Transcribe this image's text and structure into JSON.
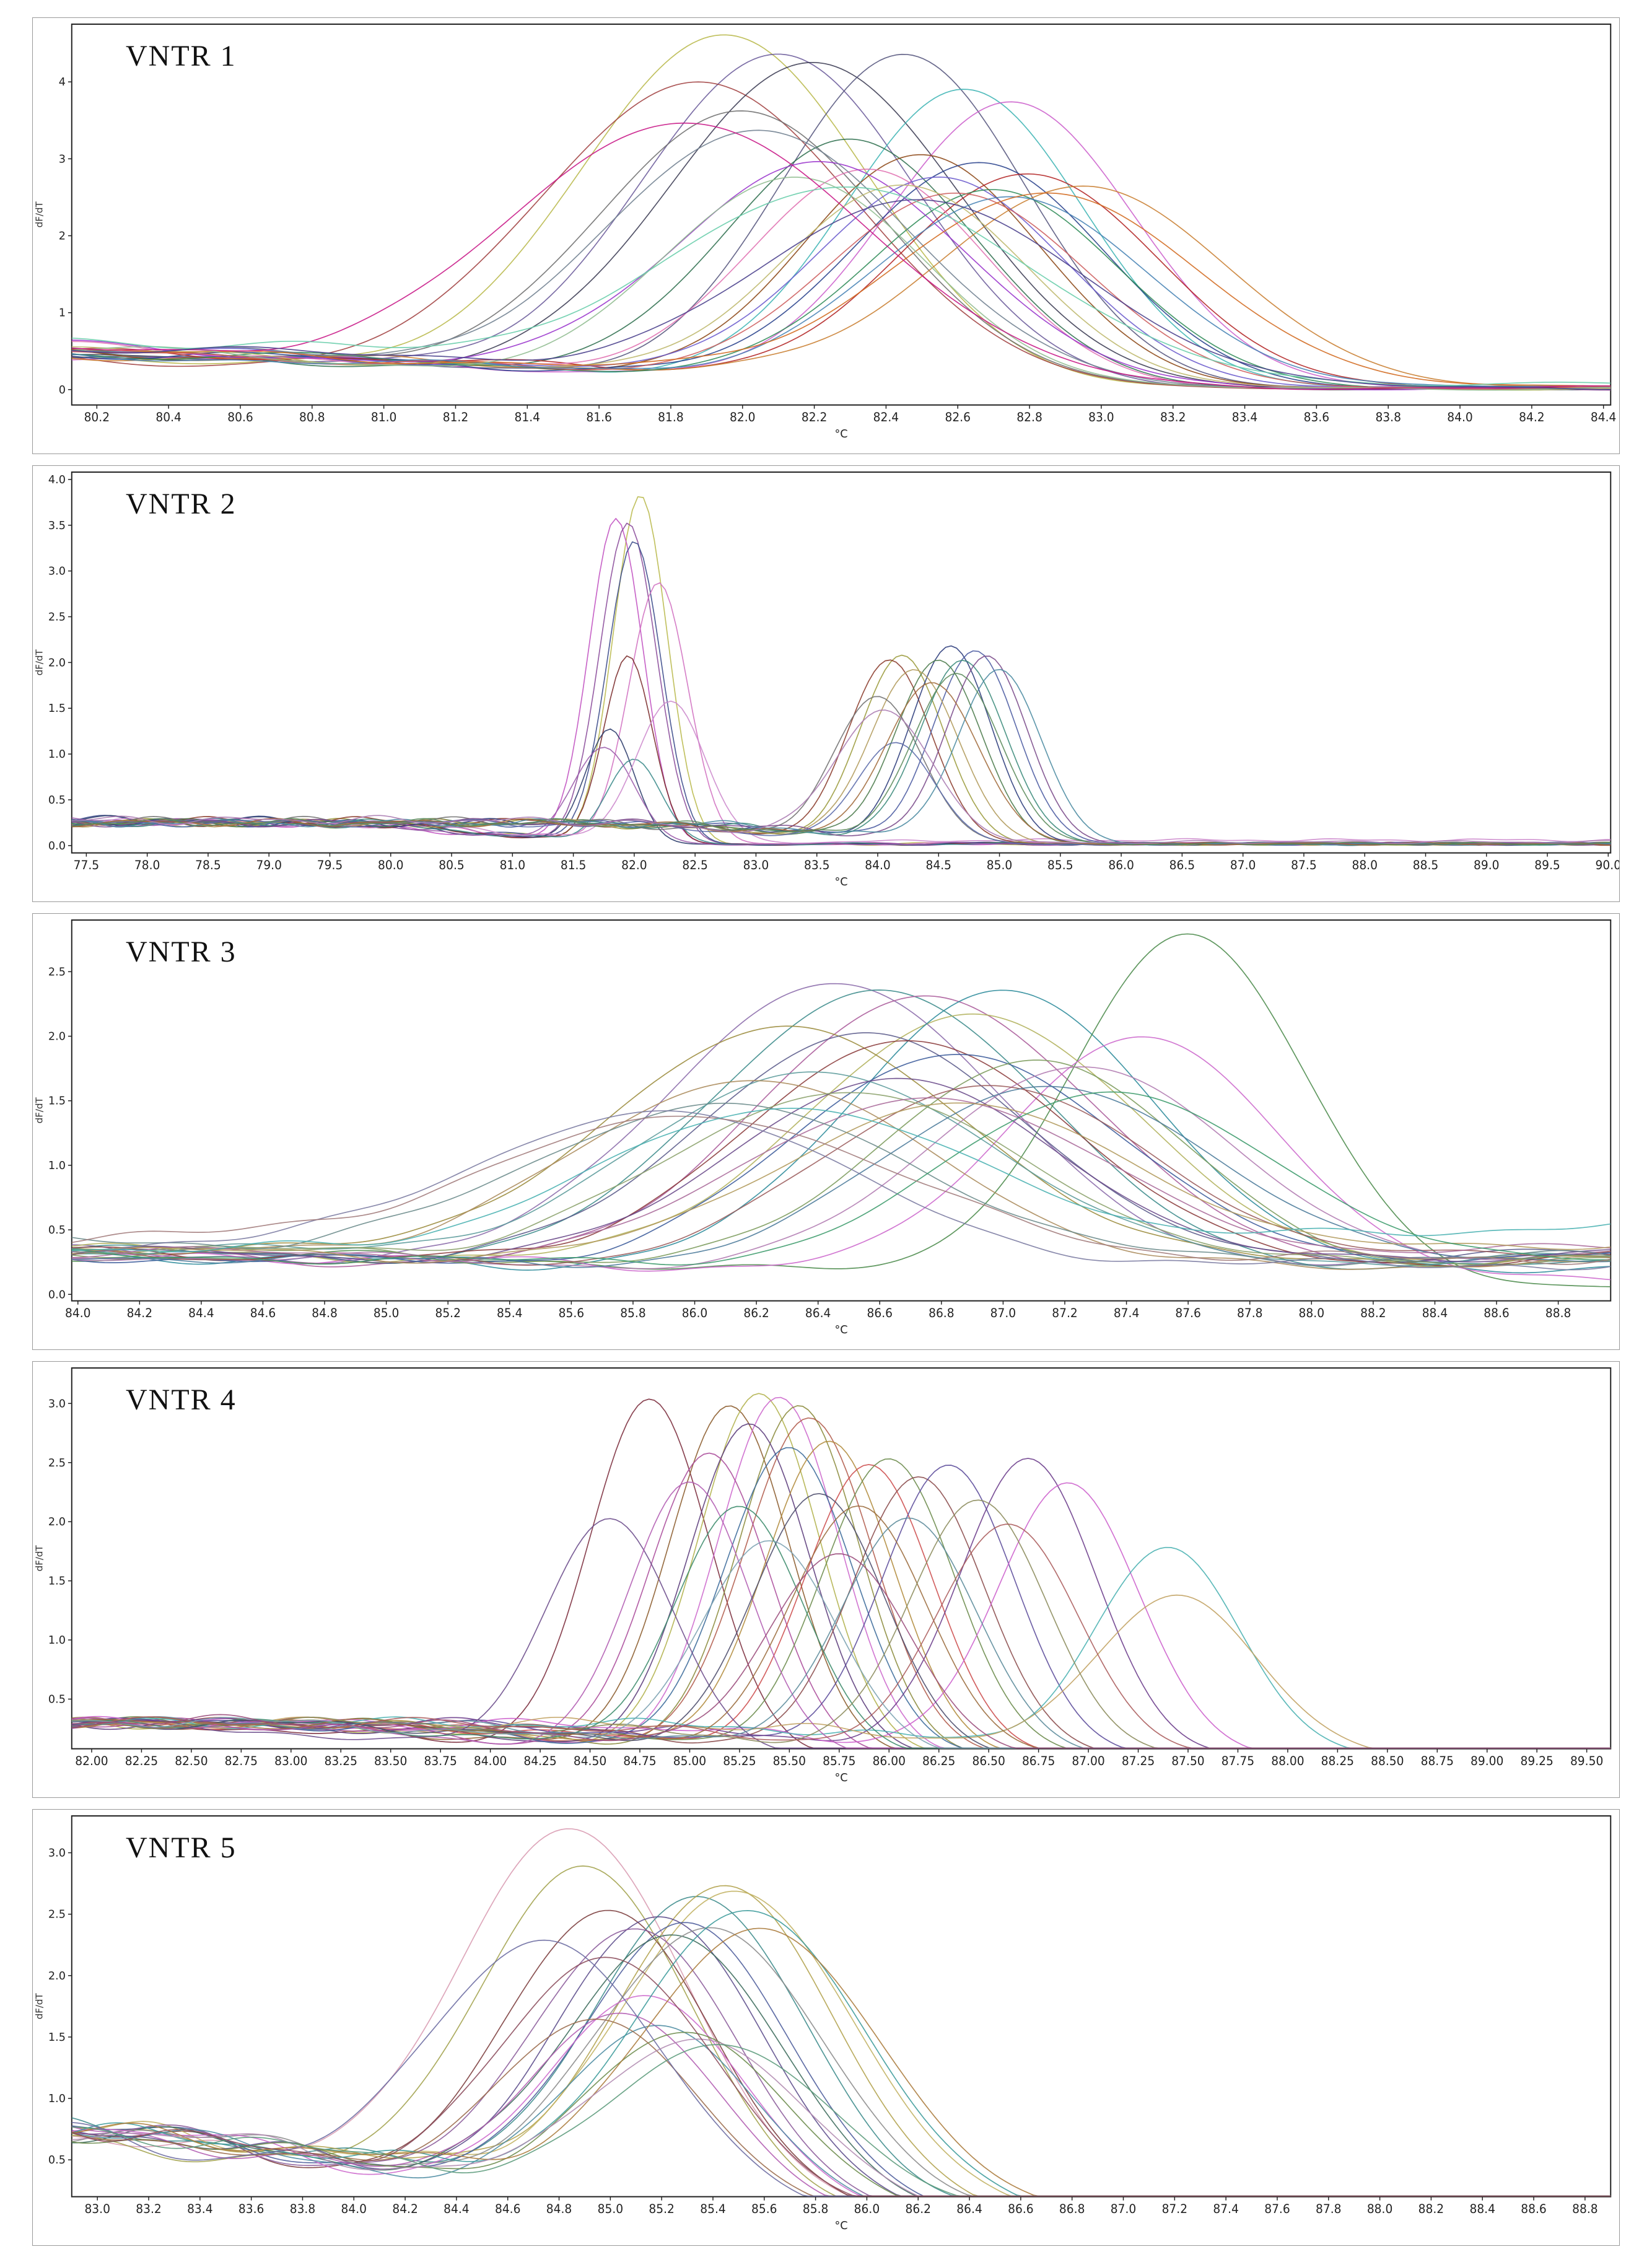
{
  "page": {
    "background": "#ffffff",
    "frame_color": "#222222",
    "tick_color": "#222222"
  },
  "chart_data": [
    {
      "type": "line",
      "title": "VNTR 1",
      "xlabel": "°C",
      "ylabel": "dF/dT",
      "xlim": [
        80.13,
        84.42
      ],
      "xticks": {
        "start": 80.2,
        "end": 84.4,
        "step": 0.2,
        "decimals": 1
      },
      "ylim": [
        -0.2,
        4.75
      ],
      "yticks": {
        "start": 0,
        "end": 4,
        "step": 1,
        "decimals": 0
      },
      "grid": false,
      "legend": "none",
      "curves": [
        [
          81.95,
          4.55,
          0.4,
          0.55,
          0.02,
          "#b8b84a"
        ],
        [
          82.1,
          4.3,
          0.38,
          0.6,
          0.02,
          "#6a5a9a"
        ],
        [
          81.88,
          3.95,
          0.44,
          0.5,
          0.02,
          "#a04040"
        ],
        [
          82.2,
          4.2,
          0.4,
          0.55,
          0.02,
          "#3a3a52"
        ],
        [
          82.45,
          4.3,
          0.34,
          0.5,
          0.02,
          "#55557d"
        ],
        [
          82.62,
          3.85,
          0.33,
          0.5,
          0.02,
          "#3cb4b4"
        ],
        [
          82.75,
          3.7,
          0.34,
          0.45,
          0.02,
          "#cc5fcc"
        ],
        [
          82.0,
          3.55,
          0.4,
          0.62,
          0.02,
          "#6e6e6e"
        ],
        [
          82.3,
          3.2,
          0.35,
          0.55,
          0.02,
          "#2f6f4f"
        ],
        [
          82.5,
          3.0,
          0.33,
          0.5,
          0.02,
          "#8b4513"
        ],
        [
          82.66,
          2.9,
          0.35,
          0.5,
          0.02,
          "#27408b"
        ],
        [
          82.8,
          2.75,
          0.36,
          0.5,
          0.02,
          "#b22222"
        ],
        [
          82.95,
          2.6,
          0.4,
          0.45,
          0.02,
          "#c87d2f"
        ],
        [
          82.55,
          2.7,
          0.35,
          0.55,
          0.02,
          "#6a5acd"
        ],
        [
          82.35,
          2.8,
          0.33,
          0.6,
          0.02,
          "#e070b0"
        ],
        [
          82.7,
          2.55,
          0.35,
          0.5,
          0.02,
          "#2e8b57"
        ],
        [
          82.22,
          2.9,
          0.4,
          0.65,
          0.02,
          "#9932cc"
        ],
        [
          82.05,
          3.3,
          0.42,
          0.7,
          0.02,
          "#708090"
        ],
        [
          82.45,
          2.6,
          0.34,
          0.55,
          0.02,
          "#bdb76b"
        ],
        [
          82.6,
          2.5,
          0.36,
          0.5,
          0.02,
          "#cd5c5c"
        ],
        [
          82.75,
          2.45,
          0.38,
          0.45,
          0.05,
          "#4682b4"
        ],
        [
          82.85,
          2.5,
          0.42,
          0.5,
          0.05,
          "#d2691e"
        ],
        [
          82.15,
          2.7,
          0.36,
          0.6,
          0.02,
          "#8fbc8f"
        ],
        [
          81.85,
          3.4,
          0.5,
          0.65,
          0.02,
          "#c71585"
        ],
        [
          82.3,
          2.55,
          0.5,
          0.75,
          0.08,
          "#66cdaa"
        ],
        [
          82.5,
          2.4,
          0.45,
          0.6,
          0.02,
          "#483d8b"
        ]
      ]
    },
    {
      "type": "line",
      "title": "VNTR 2",
      "xlabel": "°C",
      "ylabel": "dF/dT",
      "xlim": [
        77.38,
        90.02
      ],
      "xticks": {
        "start": 77.5,
        "end": 90.0,
        "step": 0.5,
        "decimals": 1
      },
      "ylim": [
        -0.08,
        4.08
      ],
      "yticks": {
        "start": 0.0,
        "end": 4.0,
        "step": 0.5,
        "decimals": 1
      },
      "grid": false,
      "legend": "none",
      "curves": [
        [
          82.05,
          3.8,
          0.22,
          0.25,
          0.02,
          "#b8b84a"
        ],
        [
          81.85,
          3.55,
          0.22,
          0.25,
          0.02,
          "#c050c0"
        ],
        [
          81.95,
          3.5,
          0.23,
          0.25,
          0.02,
          "#8a4a9a"
        ],
        [
          82.0,
          3.3,
          0.22,
          0.28,
          0.02,
          "#3a4a8a"
        ],
        [
          82.2,
          2.85,
          0.24,
          0.25,
          0.02,
          "#d070c0"
        ],
        [
          81.95,
          2.05,
          0.2,
          0.25,
          0.02,
          "#7a2a2a"
        ],
        [
          81.8,
          1.25,
          0.2,
          0.28,
          0.02,
          "#2a3a6a"
        ],
        [
          82.0,
          0.92,
          0.22,
          0.25,
          0.02,
          "#3a8a8a"
        ],
        [
          81.75,
          1.05,
          0.25,
          0.27,
          0.02,
          "#9a5aaa"
        ],
        [
          82.3,
          1.55,
          0.28,
          0.25,
          0.06,
          "#cc88cc"
        ],
        [
          84.2,
          2.05,
          0.34,
          0.25,
          0.02,
          "#9a9a3a"
        ],
        [
          84.1,
          2.0,
          0.34,
          0.27,
          0.02,
          "#8a3a2a"
        ],
        [
          84.6,
          2.15,
          0.33,
          0.25,
          0.02,
          "#2a3a7a"
        ],
        [
          84.8,
          2.1,
          0.34,
          0.25,
          0.02,
          "#4a5aa0"
        ],
        [
          84.5,
          2.0,
          0.35,
          0.25,
          0.02,
          "#4a7a4a"
        ],
        [
          84.3,
          1.9,
          0.36,
          0.25,
          0.02,
          "#b09a5a"
        ],
        [
          84.7,
          2.0,
          0.35,
          0.25,
          0.02,
          "#3a8a7a"
        ],
        [
          84.0,
          1.6,
          0.36,
          0.27,
          0.02,
          "#707070"
        ],
        [
          84.15,
          1.1,
          0.32,
          0.25,
          0.02,
          "#5a6aaa"
        ],
        [
          84.9,
          2.05,
          0.33,
          0.25,
          0.02,
          "#7a4a8a"
        ],
        [
          85.0,
          1.9,
          0.34,
          0.25,
          0.02,
          "#4a8aa0"
        ],
        [
          84.45,
          1.75,
          0.38,
          0.25,
          0.02,
          "#a06a3a"
        ],
        [
          84.65,
          1.85,
          0.36,
          0.25,
          0.02,
          "#5a8a5a"
        ],
        [
          84.05,
          1.45,
          0.4,
          0.28,
          0.04,
          "#aa7ab0"
        ]
      ]
    },
    {
      "type": "line",
      "title": "VNTR 3",
      "xlabel": "°C",
      "ylabel": "dF/dT",
      "xlim": [
        83.98,
        88.97
      ],
      "xticks": {
        "start": 84.0,
        "end": 88.8,
        "step": 0.2,
        "decimals": 1
      },
      "ylim": [
        -0.05,
        2.9
      ],
      "yticks": {
        "start": 0.0,
        "end": 2.5,
        "step": 0.5,
        "decimals": 1
      },
      "grid": false,
      "legend": "none",
      "curves": [
        [
          86.45,
          2.35,
          0.55,
          0.35,
          0.3,
          "#8a6aaa"
        ],
        [
          86.6,
          2.3,
          0.55,
          0.35,
          0.25,
          "#3a8a8a"
        ],
        [
          86.75,
          2.25,
          0.55,
          0.3,
          0.3,
          "#aa5a9a"
        ],
        [
          86.9,
          2.1,
          0.55,
          0.35,
          0.3,
          "#b0b05a"
        ],
        [
          87.0,
          2.3,
          0.5,
          0.3,
          0.25,
          "#2a8a9a"
        ],
        [
          87.6,
          2.75,
          0.38,
          0.3,
          0.1,
          "#4a8a4a"
        ],
        [
          87.45,
          1.95,
          0.45,
          0.3,
          0.15,
          "#cc66cc"
        ],
        [
          86.3,
          2.0,
          0.6,
          0.4,
          0.3,
          "#9a8a3a"
        ],
        [
          86.55,
          1.95,
          0.55,
          0.35,
          0.35,
          "#5a5a8a"
        ],
        [
          86.7,
          1.9,
          0.55,
          0.35,
          0.3,
          "#8a3a3a"
        ],
        [
          86.85,
          1.8,
          0.55,
          0.3,
          0.35,
          "#3a5a9a"
        ],
        [
          87.1,
          1.75,
          0.5,
          0.35,
          0.3,
          "#7a9a5a"
        ],
        [
          87.25,
          1.7,
          0.5,
          0.3,
          0.4,
          "#b07ab0"
        ],
        [
          86.4,
          1.65,
          0.6,
          0.4,
          0.3,
          "#5a9a9a"
        ],
        [
          86.2,
          1.6,
          0.6,
          0.4,
          0.25,
          "#aa8a5a"
        ],
        [
          86.65,
          1.6,
          0.55,
          0.35,
          0.35,
          "#6a4a8a"
        ],
        [
          86.95,
          1.55,
          0.55,
          0.3,
          0.4,
          "#9a5a5a"
        ],
        [
          87.15,
          1.55,
          0.55,
          0.3,
          0.35,
          "#4a7a9a"
        ],
        [
          86.5,
          1.5,
          0.6,
          0.4,
          0.3,
          "#8aa06a"
        ],
        [
          86.75,
          1.45,
          0.6,
          0.35,
          0.4,
          "#aa6a9a"
        ],
        [
          86.1,
          1.4,
          0.65,
          0.45,
          0.3,
          "#6a8a8a"
        ],
        [
          86.85,
          1.4,
          0.6,
          0.35,
          0.45,
          "#b0985a"
        ],
        [
          85.9,
          1.35,
          0.65,
          0.45,
          0.25,
          "#7a7aa0"
        ],
        [
          87.35,
          1.5,
          0.55,
          0.3,
          0.35,
          "#3a9a6a"
        ],
        [
          86.0,
          1.3,
          0.7,
          0.5,
          0.3,
          "#a07a7a"
        ],
        [
          86.3,
          1.35,
          0.65,
          0.4,
          0.55,
          "#48b0b0"
        ]
      ]
    },
    {
      "type": "line",
      "title": "VNTR 4",
      "xlabel": "°C",
      "ylabel": "dF/dT",
      "xlim": [
        81.9,
        89.62
      ],
      "xticks": {
        "start": 82.0,
        "end": 89.5,
        "step": 0.25,
        "decimals": 2
      },
      "ylim": [
        0.08,
        3.3
      ],
      "yticks": {
        "start": 0.5,
        "end": 3.0,
        "step": 0.5,
        "decimals": 1
      },
      "grid": false,
      "legend": "none",
      "curves": [
        [
          84.8,
          3.0,
          0.3,
          0.3,
          0.02,
          "#7a2a3a"
        ],
        [
          85.2,
          2.95,
          0.3,
          0.3,
          0.02,
          "#8a5a2a"
        ],
        [
          85.35,
          3.05,
          0.3,
          0.3,
          0.02,
          "#b0b04a"
        ],
        [
          85.45,
          3.02,
          0.3,
          0.3,
          0.02,
          "#cc66cc"
        ],
        [
          85.55,
          2.95,
          0.3,
          0.3,
          0.02,
          "#8a8a3a"
        ],
        [
          85.6,
          2.85,
          0.32,
          0.3,
          0.02,
          "#b05a4a"
        ],
        [
          85.3,
          2.8,
          0.3,
          0.3,
          0.02,
          "#5a3a7a"
        ],
        [
          85.1,
          2.55,
          0.3,
          0.3,
          0.02,
          "#aa4a9a"
        ],
        [
          85.5,
          2.6,
          0.32,
          0.3,
          0.02,
          "#3a6a9a"
        ],
        [
          85.7,
          2.65,
          0.32,
          0.3,
          0.02,
          "#b08a3a"
        ],
        [
          85.9,
          2.45,
          0.32,
          0.3,
          0.02,
          "#cc4a4a"
        ],
        [
          86.0,
          2.5,
          0.33,
          0.3,
          0.02,
          "#6a8a4a"
        ],
        [
          86.15,
          2.35,
          0.33,
          0.3,
          0.02,
          "#8a4a4a"
        ],
        [
          86.3,
          2.45,
          0.33,
          0.3,
          0.02,
          "#5a4a9a"
        ],
        [
          86.7,
          2.5,
          0.34,
          0.3,
          0.02,
          "#6a3a8a"
        ],
        [
          86.9,
          2.3,
          0.35,
          0.3,
          0.02,
          "#cc5fcc"
        ],
        [
          87.4,
          1.75,
          0.36,
          0.3,
          0.02,
          "#48b0b0"
        ],
        [
          87.45,
          1.35,
          0.4,
          0.3,
          0.02,
          "#c0a060"
        ],
        [
          84.6,
          2.0,
          0.32,
          0.3,
          0.02,
          "#6a4a8a"
        ],
        [
          85.0,
          2.3,
          0.3,
          0.3,
          0.02,
          "#b05ab0"
        ],
        [
          85.25,
          2.1,
          0.32,
          0.32,
          0.02,
          "#3a8a6a"
        ],
        [
          85.65,
          2.2,
          0.33,
          0.3,
          0.02,
          "#4a4a6a"
        ],
        [
          85.85,
          2.1,
          0.34,
          0.3,
          0.02,
          "#9a6a3a"
        ],
        [
          86.1,
          2.0,
          0.34,
          0.3,
          0.02,
          "#5a8a9a"
        ],
        [
          86.45,
          2.15,
          0.34,
          0.3,
          0.02,
          "#8a8a5a"
        ],
        [
          86.6,
          1.95,
          0.35,
          0.3,
          0.02,
          "#aa5a5a"
        ],
        [
          85.4,
          1.8,
          0.34,
          0.32,
          0.02,
          "#7aa0b0"
        ],
        [
          85.75,
          1.7,
          0.35,
          0.32,
          0.02,
          "#9a4a7a"
        ]
      ]
    },
    {
      "type": "line",
      "title": "VNTR 5",
      "xlabel": "°C",
      "ylabel": "dF/dT",
      "xlim": [
        82.9,
        88.9
      ],
      "xticks": {
        "start": 83.0,
        "end": 88.8,
        "step": 0.2,
        "decimals": 1
      },
      "ylim": [
        0.2,
        3.3
      ],
      "yticks": {
        "start": 0.5,
        "end": 3.0,
        "step": 0.5,
        "decimals": 1
      },
      "grid": false,
      "legend": "none",
      "curves": [
        [
          84.85,
          3.1,
          0.45,
          0.85,
          0.05,
          "#d89ab0"
        ],
        [
          84.9,
          2.8,
          0.42,
          0.8,
          0.05,
          "#a0a04a"
        ],
        [
          85.0,
          2.45,
          0.4,
          0.85,
          0.05,
          "#7a3a3a"
        ],
        [
          85.35,
          2.55,
          0.42,
          0.8,
          0.05,
          "#3a8a8a"
        ],
        [
          85.45,
          2.65,
          0.42,
          0.8,
          0.05,
          "#b0a04a"
        ],
        [
          85.5,
          2.6,
          0.45,
          0.78,
          0.05,
          "#c0b060"
        ],
        [
          85.2,
          2.4,
          0.4,
          0.82,
          0.05,
          "#5a4a8a"
        ],
        [
          85.3,
          2.35,
          0.4,
          0.8,
          0.05,
          "#4a5a9a"
        ],
        [
          85.1,
          2.3,
          0.4,
          0.85,
          0.05,
          "#8a5a9a"
        ],
        [
          85.25,
          2.25,
          0.42,
          0.8,
          0.05,
          "#3a6a5a"
        ],
        [
          85.4,
          2.3,
          0.44,
          0.78,
          0.05,
          "#8a8a8a"
        ],
        [
          85.15,
          1.75,
          0.38,
          0.85,
          0.05,
          "#cc66cc"
        ],
        [
          85.05,
          1.6,
          0.38,
          0.85,
          0.05,
          "#b05ab0"
        ],
        [
          85.2,
          1.5,
          0.38,
          0.8,
          0.05,
          "#4a8aa0"
        ],
        [
          85.3,
          1.45,
          0.4,
          0.78,
          0.05,
          "#6a8a4a"
        ],
        [
          84.95,
          1.55,
          0.4,
          0.88,
          0.05,
          "#9a6a4a"
        ],
        [
          85.55,
          2.45,
          0.45,
          0.75,
          0.05,
          "#3a9a9a"
        ],
        [
          85.6,
          2.3,
          0.46,
          0.75,
          0.05,
          "#aa7a3a"
        ],
        [
          84.75,
          2.2,
          0.45,
          0.88,
          0.05,
          "#6a6aa0"
        ],
        [
          85.35,
          1.4,
          0.42,
          0.8,
          0.05,
          "#b08ab0"
        ],
        [
          85.45,
          1.35,
          0.44,
          0.78,
          0.05,
          "#5a9a7a"
        ],
        [
          85.0,
          2.05,
          0.42,
          0.9,
          0.05,
          "#8a4a5a"
        ]
      ]
    }
  ]
}
